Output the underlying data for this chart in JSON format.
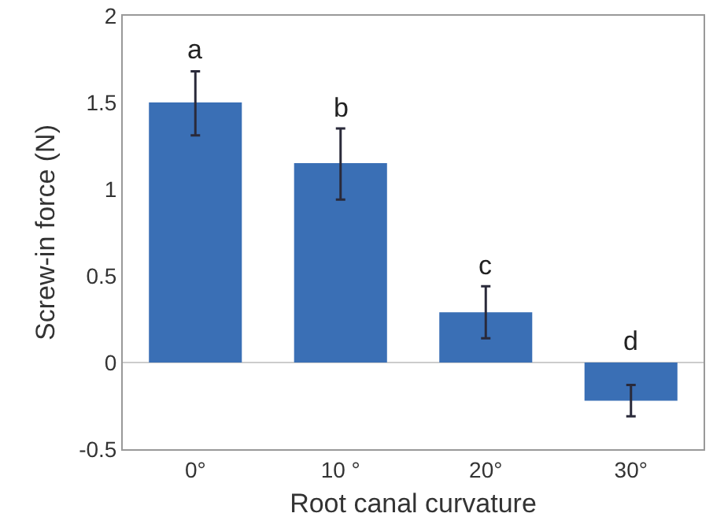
{
  "chart_data": {
    "type": "bar",
    "xlabel": "Root canal curvature",
    "ylabel": "Screw-in force (N)",
    "categories": [
      "0°",
      "10 °",
      "20°",
      "30°"
    ],
    "values": [
      1.5,
      1.15,
      0.29,
      -0.22
    ],
    "errors": [
      [
        1.31,
        1.68
      ],
      [
        0.94,
        1.35
      ],
      [
        0.14,
        0.44
      ],
      [
        -0.31,
        -0.13
      ]
    ],
    "color": "#3a6fb5",
    "ylim": [
      -0.5,
      2
    ],
    "yticks": [
      -0.5,
      0,
      0.5,
      1,
      1.5,
      2
    ],
    "grid": false,
    "legend": false,
    "ref_lines": [
      {
        "axis": "y",
        "value": 0,
        "color": "#cccccc"
      }
    ],
    "annotations": [
      "a",
      "b",
      "c",
      "d"
    ]
  }
}
